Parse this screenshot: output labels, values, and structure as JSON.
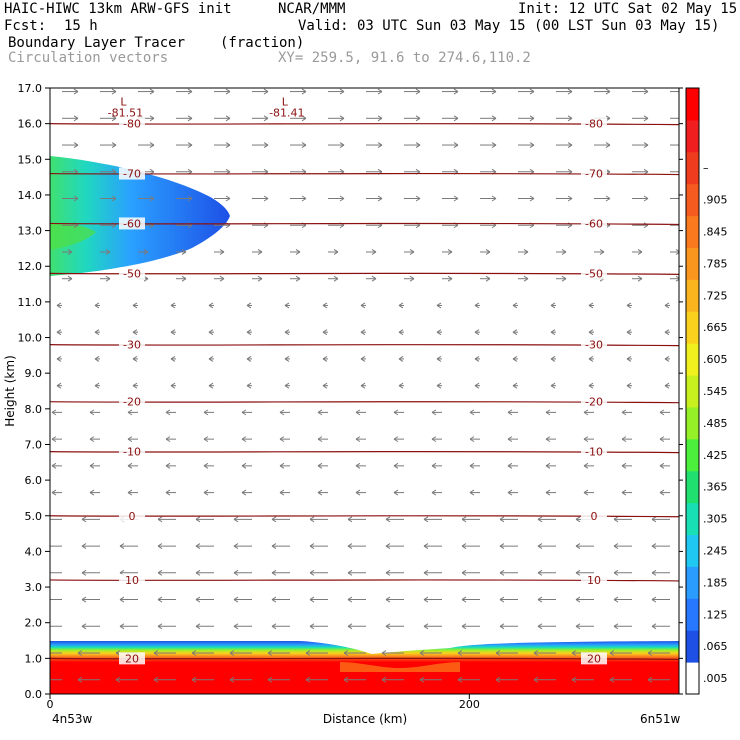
{
  "header": {
    "model": "HAIC-HIWC 13km ARW-GFS init",
    "org": "NCAR/MMM",
    "init": "Init: 12 UTC Sat 02 May 15",
    "fcst_label": "Fcst:",
    "fcst_value": "15 h",
    "valid": "Valid: 03 UTC Sun 03 May 15 (00 LST Sun 03 May 15)",
    "field": "Boundary Layer Tracer",
    "unit": "(fraction)",
    "vectors": "Circulation vectors",
    "xy": "XY= 259.5, 91.6 to 274.6,110.2"
  },
  "axes": {
    "ylabel": "Height (km)",
    "xlabel": "Distance (km)",
    "left_end": "4n53w",
    "right_end": "6n51w"
  },
  "colors": {
    "contour": "#8b1010",
    "vector": "#7a7a7a",
    "colorbar": [
      "#ffffff",
      "#1e50e6",
      "#2878ff",
      "#2a9cff",
      "#1ec8f0",
      "#18e0b4",
      "#20e070",
      "#4cf03c",
      "#96f028",
      "#c8f01e",
      "#f0f01e",
      "#fad21e",
      "#fab41e",
      "#fa961e",
      "#fa781e",
      "#f55a1e",
      "#f03c1e",
      "#f01e1e",
      "#ff0000"
    ]
  },
  "chart_data": {
    "type": "heatmap",
    "x_range": [
      0,
      300
    ],
    "y_range": [
      0.0,
      17.0
    ],
    "y_ticks": [
      "0.0",
      "1.0",
      "2.0",
      "3.0",
      "4.0",
      "5.0",
      "6.0",
      "7.0",
      "8.0",
      "9.0",
      "10.0",
      "11.0",
      "12.0",
      "13.0",
      "14.0",
      "15.0",
      "16.0",
      "17.0"
    ],
    "x_ticks": [
      {
        "value": 0,
        "label": "0"
      },
      {
        "value": 200,
        "label": "200"
      }
    ],
    "colorbar_labels": [
      ".005",
      ".065",
      ".125",
      ".185",
      ".245",
      ".305",
      ".365",
      ".425",
      ".485",
      ".545",
      ".605",
      ".665",
      ".725",
      ".785",
      ".845",
      ".905",
      "–"
    ],
    "temperature_contours": [
      {
        "height": 16.0,
        "label": "-80"
      },
      {
        "height": 14.6,
        "label": "-70"
      },
      {
        "height": 13.2,
        "label": "-60"
      },
      {
        "height": 11.8,
        "label": "-50"
      },
      {
        "height": 9.8,
        "label": "-30"
      },
      {
        "height": 8.2,
        "label": "-20"
      },
      {
        "height": 6.8,
        "label": "-10"
      },
      {
        "height": 5.0,
        "label": "0"
      },
      {
        "height": 3.2,
        "label": "10"
      },
      {
        "height": 1.0,
        "label": "20"
      }
    ],
    "lows": [
      {
        "x": 35,
        "y": 16.4,
        "marker": "L",
        "value": "-81.51"
      },
      {
        "x": 112,
        "y": 16.4,
        "marker": "L",
        "value": "-81.41"
      }
    ],
    "tracer_upper_plume": {
      "x_extent": [
        0,
        88
      ],
      "y_range": [
        11.8,
        15.1
      ],
      "peak": 0.35
    },
    "tracer_boundary_layer": {
      "top_km": 1.4,
      "dip_x": 165,
      "dip_top_km": 1.0,
      "max": 1.0
    }
  }
}
